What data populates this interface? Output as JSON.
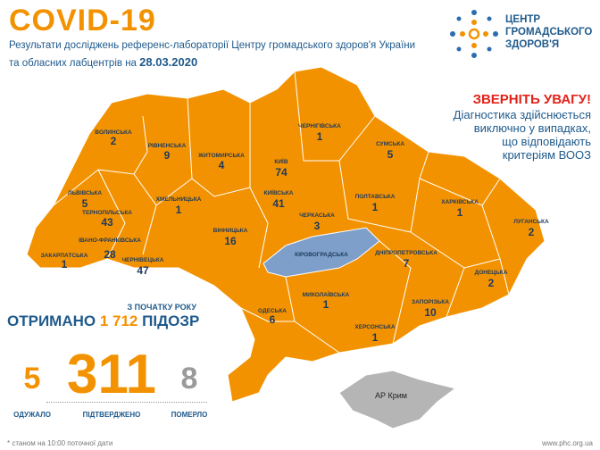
{
  "header": {
    "title": "COVID-19",
    "subtitle_line1": "Результати досліджень референс-лабораторії Центру громадського здоров'я України",
    "subtitle_line2": "та обласних лабцентрів на ",
    "date": "28.03.2020"
  },
  "logo": {
    "lines": [
      "ЦЕНТР",
      "ГРОМАДСЬКОГО",
      "ЗДОРОВ'Я"
    ]
  },
  "notice": {
    "heading": "ЗВЕРНІТЬ УВАГУ!",
    "lines": [
      "Діагностика здійснюється",
      "виключно у випадках,",
      "що відповідають",
      "критеріям ВООЗ"
    ]
  },
  "map": {
    "regions": [
      {
        "name": "ВОЛИНСЬКА",
        "count": 2
      },
      {
        "name": "РІВНЕНСЬКА",
        "count": 9
      },
      {
        "name": "ЖИТОМИРСЬКА",
        "count": 4
      },
      {
        "name": "КИЇВ",
        "count": 74
      },
      {
        "name": "КИЇВСЬКА",
        "count": 41
      },
      {
        "name": "ЧЕРНІГІВСЬКА",
        "count": 1
      },
      {
        "name": "СУМСЬКА",
        "count": 5
      },
      {
        "name": "ЛЬВІВСЬКА",
        "count": 5
      },
      {
        "name": "ТЕРНОПІЛЬСЬКА",
        "count": 43
      },
      {
        "name": "ХМЕЛЬНИЦЬКА",
        "count": 1
      },
      {
        "name": "ЗАКАРПАТСЬКА",
        "count": 1
      },
      {
        "name": "ІВАНО-ФРАНКІВСЬКА",
        "count": 28
      },
      {
        "name": "ЧЕРНІВЕЦЬКА",
        "count": 47
      },
      {
        "name": "ВІННИЦЬКА",
        "count": 16
      },
      {
        "name": "ЧЕРКАСЬКА",
        "count": 3
      },
      {
        "name": "ПОЛТАВСЬКА",
        "count": 1
      },
      {
        "name": "ХАРКІВСЬКА",
        "count": 1
      },
      {
        "name": "ЛУГАНСЬКА",
        "count": 2
      },
      {
        "name": "КІРОВОГРАДСЬКА"
      },
      {
        "name": "ДНІПРОПЕТРОВСЬКА",
        "count": 7
      },
      {
        "name": "ДОНЕЦЬКА",
        "count": 2
      },
      {
        "name": "ОДЕСЬКА",
        "count": 6
      },
      {
        "name": "МИКОЛАЇВСЬКА",
        "count": 1
      },
      {
        "name": "ЗАПОРІЗЬКА",
        "count": 10
      },
      {
        "name": "ХЕРСОНСЬКА",
        "count": 1
      }
    ],
    "crimea": "АР Крим"
  },
  "summary": {
    "since": "З ПОЧАТКУ РОКУ",
    "received_prefix": "ОТРИМАНО",
    "received": "1 712",
    "received_suffix": "ПІДОЗР",
    "recovered": 5,
    "recovered_label": "ОДУЖАЛО",
    "confirmed": 311,
    "confirmed_label": "ПІДТВЕРДЖЕНО",
    "died": 8,
    "died_label": "ПОМЕРЛО"
  },
  "footer": {
    "note": "* станом на 10:00 поточної дати",
    "url": "www.phc.org.ua"
  }
}
